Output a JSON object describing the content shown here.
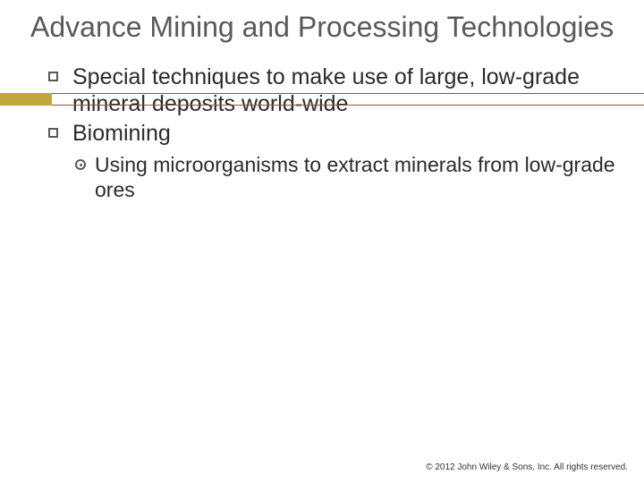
{
  "title": "Advance Mining and Processing Technologies",
  "colors": {
    "title_text": "#595959",
    "body_text": "#2b2b2b",
    "accent_gold": "#bfa63f",
    "separator_line": "#a84b3a",
    "bullet_border": "#595959",
    "background": "#ffffff"
  },
  "typography": {
    "title_fontsize": 32,
    "bullet_fontsize": 25,
    "sub_fontsize": 23,
    "footer_fontsize": 10,
    "font_family": "Arial"
  },
  "bullets": [
    {
      "text": "Special techniques to make use of large, low-grade mineral deposits world-wide"
    },
    {
      "text": "Biomining",
      "sub": [
        {
          "text": "Using microorganisms to extract minerals from low-grade ores"
        }
      ]
    }
  ],
  "footer": "© 2012 John Wiley & Sons, Inc. All rights reserved."
}
